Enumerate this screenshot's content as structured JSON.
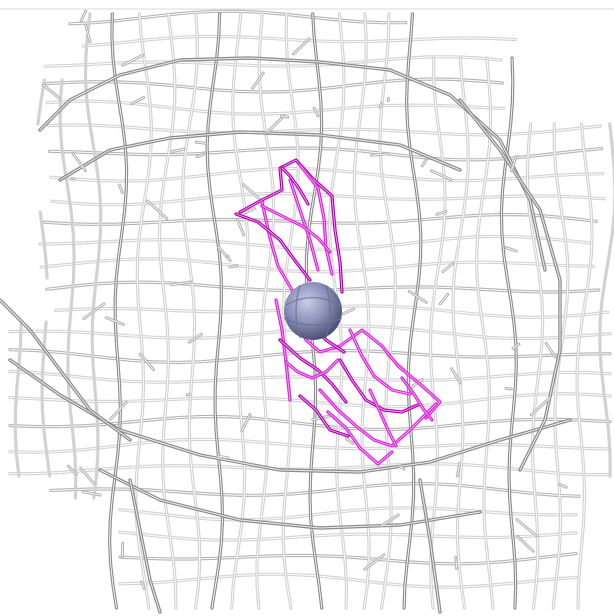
{
  "scene": {
    "background": "#ffffff",
    "colors": {
      "surface_mesh_light": "#d2d2d2",
      "surface_mesh_mid": "#b4b4b4",
      "surface_mesh_dark": "#8c8c8c",
      "density_map": "#dd22dd",
      "density_map_dark": "#b000b0",
      "ligand_atom": "#8a8fb8"
    },
    "objects": [
      "gray-surface-mesh",
      "magenta-density-mesh",
      "ligand-sphere"
    ]
  }
}
